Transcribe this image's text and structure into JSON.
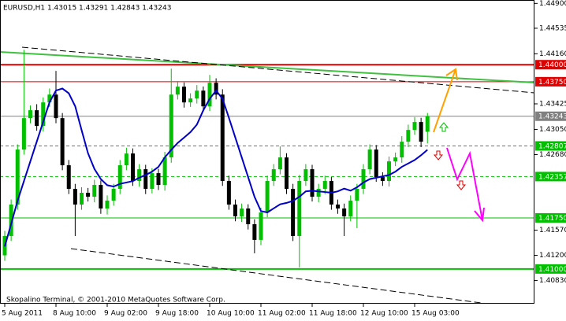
{
  "chart_data": {
    "type": "candlestick",
    "title": "EURUSD,H1  1.43015 1.43291 1.42843 1.43243",
    "footer": "Skopalino Terminal, © 2001-2010 MetaQuotes Software Corp.",
    "categories": [
      "5 Aug 2011",
      null,
      null,
      null,
      null,
      null,
      null,
      null,
      "8 Aug 10:00",
      null,
      null,
      null,
      null,
      null,
      null,
      null,
      "9 Aug 02:00",
      null,
      null,
      null,
      null,
      null,
      null,
      null,
      "9 Aug 18:00",
      null,
      null,
      null,
      null,
      null,
      null,
      null,
      "10 Aug 10:00",
      null,
      null,
      null,
      null,
      null,
      null,
      null,
      "11 Aug 02:00",
      null,
      null,
      null,
      null,
      null,
      null,
      null,
      "11 Aug 18:00",
      null,
      null,
      null,
      null,
      null,
      null,
      null,
      "12 Aug 10:00",
      null,
      null,
      null,
      null,
      null,
      null,
      null,
      "15 Aug 03:00",
      null,
      null
    ],
    "open": [
      1.412,
      1.41484,
      1.41946,
      1.42754,
      1.43215,
      1.43331,
      1.431,
      1.43446,
      1.43561,
      1.43215,
      1.42523,
      1.42177,
      1.41946,
      1.42119,
      1.42061,
      1.42234,
      1.41888,
      1.42004,
      1.42177,
      1.42523,
      1.42696,
      1.42292,
      1.42465,
      1.42177,
      1.42407,
      1.42234,
      1.42638,
      1.43561,
      1.43677,
      1.43446,
      1.43504,
      1.43619,
      1.43388,
      1.43735,
      1.43561,
      1.42292,
      1.41946,
      1.41773,
      1.41888,
      1.41657,
      1.41427,
      1.4183,
      1.42292,
      1.42465,
      1.42638,
      1.42177,
      1.41484,
      1.42292,
      1.42465,
      1.42061,
      1.42177,
      1.42292,
      1.41946,
      1.41888,
      1.41773,
      1.42004,
      1.42177,
      1.42465,
      1.42754,
      1.4235,
      1.42292,
      1.4258,
      1.42638,
      1.42869,
      1.43042,
      1.43158,
      1.43015
    ],
    "high": [
      1.4156,
      1.4202,
      1.4283,
      1.4422,
      1.434,
      1.4342,
      1.4352,
      1.4365,
      1.43908,
      1.4329,
      1.426,
      1.4225,
      1.422,
      1.4219,
      1.4231,
      1.423,
      1.4208,
      1.4225,
      1.426,
      1.4278,
      1.4277,
      1.4254,
      1.4253,
      1.4248,
      1.4247,
      1.4272,
      1.43942,
      1.4376,
      1.4374,
      1.4358,
      1.437,
      1.4368,
      1.4385,
      1.438,
      1.4364,
      1.4237,
      1.4202,
      1.4196,
      1.4195,
      1.4173,
      1.419,
      1.4237,
      1.4254,
      1.428,
      1.427,
      1.4225,
      1.4238,
      1.4254,
      1.4253,
      1.4225,
      1.4237,
      1.4235,
      1.4202,
      1.4196,
      1.4208,
      1.4225,
      1.4254,
      1.4283,
      1.4282,
      1.4242,
      1.4265,
      1.4271,
      1.4295,
      1.4312,
      1.4323,
      1.4322,
      1.43291
    ],
    "low": [
      1.4112,
      1.4141,
      1.4187,
      1.4268,
      1.4314,
      1.4303,
      1.4302,
      1.4338,
      1.4314,
      1.4245,
      1.421,
      1.41484,
      1.4187,
      1.4199,
      1.4198,
      1.4181,
      1.418,
      1.4193,
      1.421,
      1.4245,
      1.4222,
      1.4221,
      1.421,
      1.4211,
      1.4216,
      1.4215,
      1.4256,
      1.4349,
      1.4337,
      1.4338,
      1.4343,
      1.4331,
      1.4332,
      1.4349,
      1.4222,
      1.4187,
      1.417,
      1.4169,
      1.4158,
      1.4123,
      1.4135,
      1.4176,
      1.4222,
      1.4239,
      1.421,
      1.4141,
      1.41023,
      1.4222,
      1.4199,
      1.4198,
      1.421,
      1.4187,
      1.4181,
      1.41484,
      1.417,
      1.416,
      1.421,
      1.4239,
      1.4228,
      1.4222,
      1.4221,
      1.4251,
      1.4256,
      1.4279,
      1.4297,
      1.4279,
      1.42843
    ],
    "close": [
      1.41484,
      1.41946,
      1.42754,
      1.43215,
      1.43331,
      1.431,
      1.43446,
      1.43561,
      1.43215,
      1.42523,
      1.42177,
      1.41946,
      1.42119,
      1.42061,
      1.42234,
      1.41888,
      1.42004,
      1.42177,
      1.42523,
      1.42696,
      1.42292,
      1.42465,
      1.42177,
      1.42407,
      1.42234,
      1.42638,
      1.43561,
      1.43677,
      1.43446,
      1.43504,
      1.43619,
      1.43388,
      1.43735,
      1.43561,
      1.42292,
      1.41946,
      1.41773,
      1.41888,
      1.41657,
      1.41427,
      1.4183,
      1.42292,
      1.42465,
      1.42638,
      1.42177,
      1.41484,
      1.42292,
      1.42465,
      1.42061,
      1.42177,
      1.42292,
      1.41946,
      1.41888,
      1.41773,
      1.42004,
      1.42177,
      1.42465,
      1.42754,
      1.4235,
      1.42292,
      1.4258,
      1.42638,
      1.42869,
      1.43042,
      1.43158,
      1.42869,
      1.43243
    ],
    "bull_color": "#00c000",
    "bear_color": "#000000",
    "ma": {
      "color": "#0000c8",
      "values": [
        1.4133,
        1.4166,
        1.42,
        1.4229,
        1.4258,
        1.4287,
        1.4316,
        1.4345,
        1.4362,
        1.4365,
        1.4358,
        1.4339,
        1.4304,
        1.427,
        1.4247,
        1.4232,
        1.4223,
        1.4221,
        1.4225,
        1.4227,
        1.4229,
        1.4234,
        1.4238,
        1.4243,
        1.425,
        1.4264,
        1.4275,
        1.4285,
        1.4293,
        1.4301,
        1.4312,
        1.4333,
        1.435,
        1.4362,
        1.435,
        1.4322,
        1.4293,
        1.4264,
        1.4235,
        1.4206,
        1.4185,
        1.4183,
        1.4189,
        1.4195,
        1.4197,
        1.42,
        1.4206,
        1.4214,
        1.4215,
        1.4214,
        1.4213,
        1.4212,
        1.4214,
        1.4218,
        1.4215,
        1.422,
        1.4227,
        1.4232,
        1.4234,
        1.4236,
        1.4238,
        1.4243,
        1.425,
        1.4255,
        1.426,
        1.4267,
        1.4275
      ]
    },
    "ylim": [
      1.4049,
      1.4495
    ],
    "yticks": [
      {
        "value": 1.449,
        "label": "1.44900"
      },
      {
        "value": 1.44535,
        "label": "1.44535"
      },
      {
        "value": 1.4416,
        "label": "1.44160"
      },
      {
        "value": 1.43425,
        "label": "1.43425"
      },
      {
        "value": 1.4305,
        "label": "1.43050"
      },
      {
        "value": 1.4268,
        "label": "1.42680"
      },
      {
        "value": 1.4157,
        "label": "1.41570"
      },
      {
        "value": 1.412,
        "label": "1.41200"
      },
      {
        "value": 1.4083,
        "label": "1.40830"
      }
    ],
    "levels": [
      {
        "value": 1.44,
        "label": "1.44000",
        "color": "#e00000",
        "style": "solid",
        "width": 2
      },
      {
        "value": 1.4375,
        "label": "1.43750",
        "color": "#e00000",
        "style": "solid",
        "width": 1
      },
      {
        "value": 1.43243,
        "label": "1.43243",
        "color": "#808080",
        "style": "solid",
        "width": 1
      },
      {
        "value": 1.42807,
        "label": "1.42807",
        "color": "#00c000",
        "style": "dashed",
        "width": 1
      },
      {
        "value": 1.42357,
        "label": "1.42357",
        "color": "#00c000",
        "style": "dashed",
        "width": 1
      },
      {
        "value": 1.4175,
        "label": "1.41750",
        "color": "#00c000",
        "style": "solid",
        "width": 1
      },
      {
        "value": 1.41,
        "label": "1.41000",
        "color": "#00c000",
        "style": "solid",
        "width": 2
      }
    ]
  }
}
